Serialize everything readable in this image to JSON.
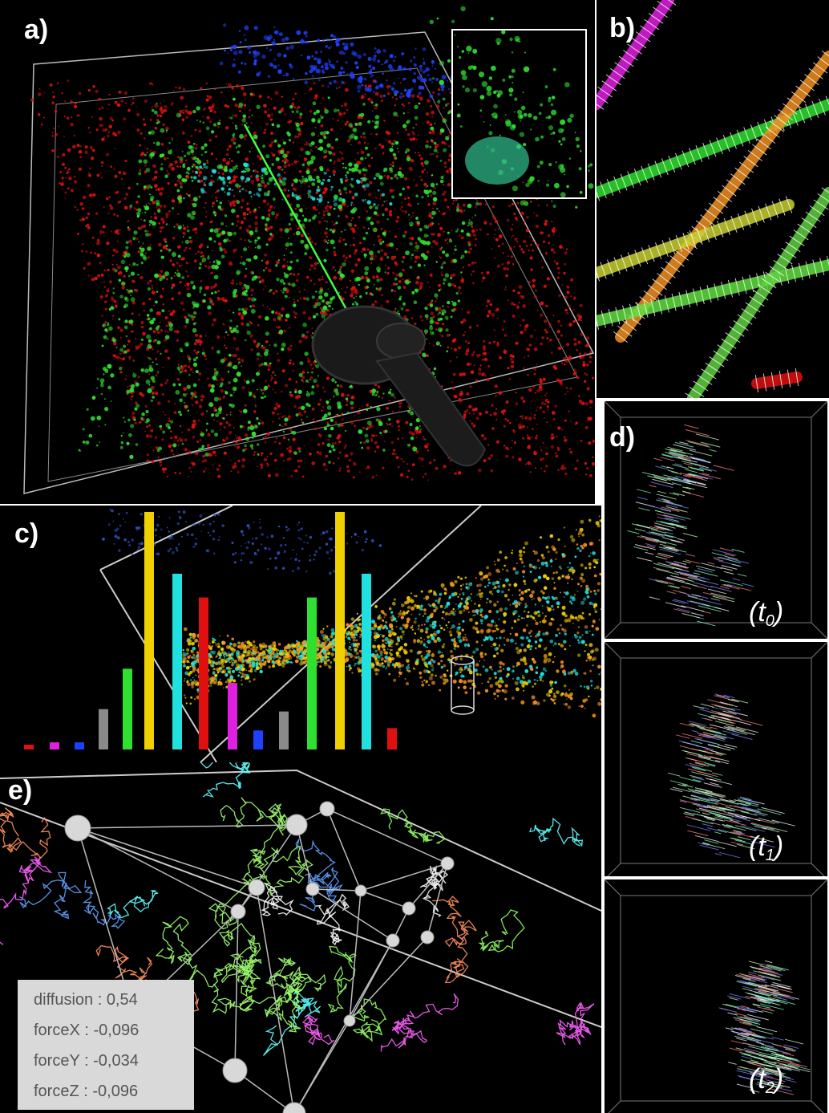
{
  "panels": {
    "a": {
      "label": "a)"
    },
    "b": {
      "label": "b)"
    },
    "c": {
      "label": "c)"
    },
    "d": {
      "label": "d)",
      "frames": [
        {
          "t": "t",
          "sub": "0"
        },
        {
          "t": "t",
          "sub": "1"
        },
        {
          "t": "t",
          "sub": "2"
        }
      ]
    },
    "e": {
      "label": "e)",
      "params": [
        {
          "name": "diffusion",
          "value": "0,54"
        },
        {
          "name": "forceX",
          "value": "-0,096"
        },
        {
          "name": "forceY",
          "value": "-0,034"
        },
        {
          "name": "forceZ",
          "value": "-0,096"
        }
      ]
    }
  },
  "colors": {
    "red": "#e01010",
    "green": "#30e030",
    "cyan": "#20e0e0",
    "yellow": "#f0d000",
    "blue": "#2040ff",
    "magenta": "#e020e0",
    "grey": "#8a8a8a",
    "orange": "#f09020"
  },
  "bars": [
    {
      "color": "red",
      "level": 0.02
    },
    {
      "color": "magenta",
      "level": 0.03
    },
    {
      "color": "blue",
      "level": 0.03
    },
    {
      "color": "grey",
      "level": 0.17
    },
    {
      "color": "green",
      "level": 0.34
    },
    {
      "color": "yellow",
      "level": 1.0
    },
    {
      "color": "cyan",
      "level": 0.74
    },
    {
      "color": "red",
      "level": 0.64
    },
    {
      "color": "magenta",
      "level": 0.28
    },
    {
      "color": "blue",
      "level": 0.08
    },
    {
      "color": "grey",
      "level": 0.16
    },
    {
      "color": "green",
      "level": 0.64
    },
    {
      "color": "yellow",
      "level": 1.0
    },
    {
      "color": "cyan",
      "level": 0.74
    },
    {
      "color": "red",
      "level": 0.09
    }
  ]
}
